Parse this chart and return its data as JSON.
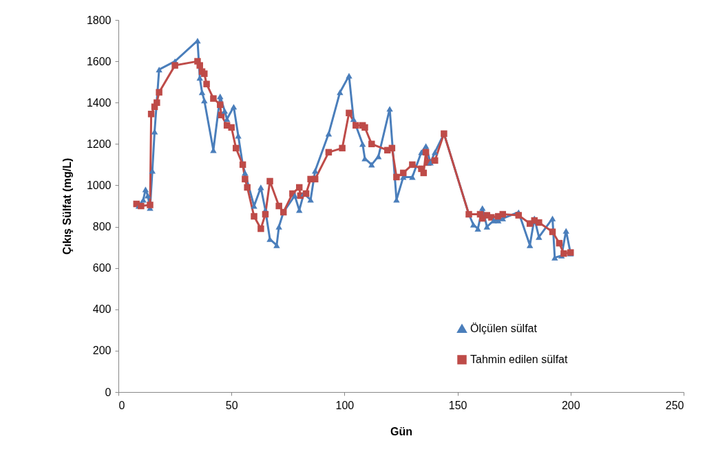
{
  "chart_data": {
    "type": "line",
    "xlabel": "Gün",
    "ylabel": "Çıkış Sülfat (mg/L)",
    "xlim": [
      0,
      250
    ],
    "xticks": [
      0,
      50,
      100,
      150,
      200,
      250
    ],
    "ylim": [
      0,
      1800
    ],
    "yticks": [
      0,
      200,
      400,
      600,
      800,
      1000,
      1200,
      1400,
      1600,
      1800
    ],
    "grid": false,
    "legend": "bottom right",
    "series": [
      {
        "name": "Ölçülen sülfat",
        "color": "#4a7ebb",
        "marker": "triangle",
        "x": [
          9,
          11,
          12,
          13,
          14,
          15,
          16,
          18,
          25,
          35,
          36,
          37,
          38,
          42,
          45,
          47,
          48,
          51,
          53,
          55,
          56,
          60,
          63,
          65,
          67,
          70,
          71,
          73,
          78,
          80,
          82,
          85,
          87,
          93,
          98,
          102,
          104,
          108,
          109,
          112,
          115,
          120,
          123,
          126,
          130,
          134,
          136,
          138,
          140,
          144,
          155,
          157,
          159,
          161,
          163,
          166,
          168,
          170,
          177,
          182,
          184,
          186,
          192,
          193,
          196,
          198,
          200
        ],
        "values": [
          900,
          930,
          980,
          950,
          890,
          1070,
          1260,
          1560,
          1600,
          1700,
          1520,
          1450,
          1410,
          1170,
          1430,
          1360,
          1320,
          1380,
          1240,
          1100,
          1060,
          900,
          990,
          880,
          740,
          710,
          800,
          870,
          950,
          880,
          960,
          930,
          1070,
          1250,
          1450,
          1530,
          1320,
          1200,
          1130,
          1100,
          1140,
          1370,
          930,
          1040,
          1040,
          1160,
          1190,
          1110,
          1160,
          1250,
          860,
          810,
          790,
          890,
          800,
          830,
          830,
          840,
          870,
          710,
          840,
          750,
          840,
          650,
          660,
          780,
          670
        ]
      },
      {
        "name": "Tahmin edilen sülfat",
        "color": "#be4b48",
        "marker": "square",
        "x": [
          8,
          10,
          14,
          14.5,
          16,
          17,
          18,
          25,
          35,
          36,
          37,
          38,
          39,
          42,
          45,
          45.5,
          48,
          50,
          52,
          55,
          56,
          57,
          60,
          63,
          65,
          67,
          71,
          73,
          77,
          80,
          80.5,
          83,
          85,
          87,
          93,
          99,
          102,
          105,
          108,
          109,
          112,
          119,
          121,
          123,
          126,
          130,
          134,
          135,
          136,
          137,
          140,
          144,
          155,
          160,
          161,
          163,
          165,
          168,
          170,
          177,
          182,
          184,
          186,
          192,
          195,
          197,
          200
        ],
        "values": [
          910,
          900,
          905,
          1345,
          1380,
          1400,
          1450,
          1580,
          1600,
          1580,
          1550,
          1540,
          1490,
          1420,
          1390,
          1340,
          1290,
          1280,
          1180,
          1100,
          1030,
          990,
          850,
          790,
          860,
          1020,
          900,
          870,
          960,
          990,
          950,
          960,
          1030,
          1030,
          1160,
          1180,
          1350,
          1290,
          1290,
          1280,
          1200,
          1170,
          1180,
          1040,
          1060,
          1100,
          1080,
          1060,
          1160,
          1110,
          1120,
          1250,
          860,
          860,
          840,
          855,
          845,
          850,
          860,
          855,
          815,
          830,
          820,
          775,
          720,
          670,
          675
        ]
      }
    ]
  }
}
